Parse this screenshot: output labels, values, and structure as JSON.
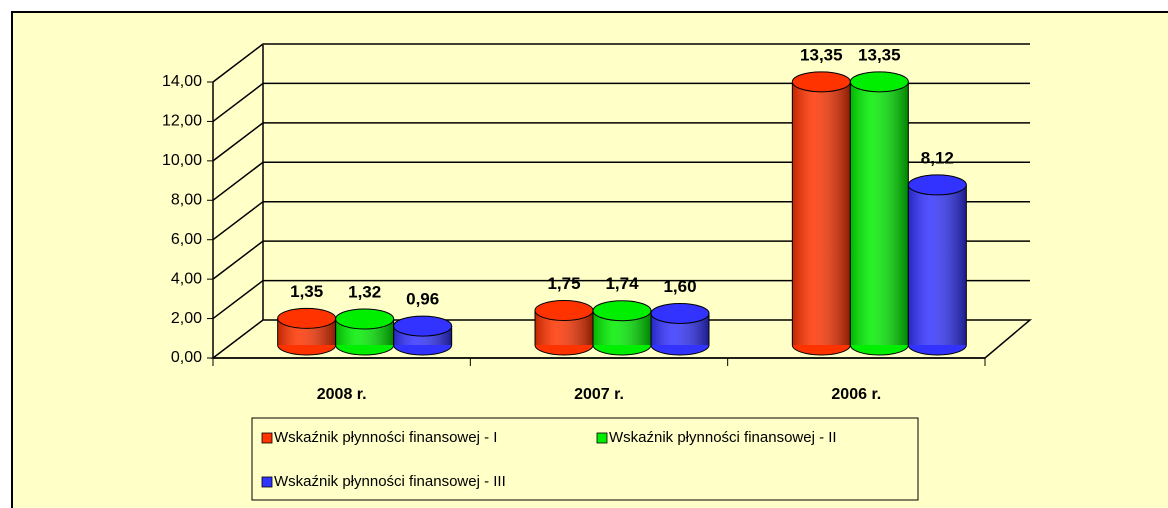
{
  "chart_data": {
    "type": "bar3d",
    "categories": [
      "2008 r.",
      "2007 r.",
      "2006 r."
    ],
    "series": [
      {
        "name": "Wskaźnik płynności  finansowej - I",
        "color": "#ff3300",
        "values": [
          1.35,
          1.75,
          13.35
        ],
        "value_labels": [
          "1,35",
          "1,75",
          "13,35"
        ]
      },
      {
        "name": "Wskaźnik płynności  finansowej - II",
        "color": "#00ee00",
        "values": [
          1.32,
          1.74,
          13.35
        ],
        "value_labels": [
          "1,32",
          "1,74",
          "13,35"
        ]
      },
      {
        "name": "Wskaźnik płynności  finansowej - III",
        "color": "#3333ff",
        "values": [
          0.96,
          1.6,
          8.12
        ],
        "value_labels": [
          "0,96",
          "1,60",
          "8,12"
        ]
      }
    ],
    "ylim": [
      0,
      14
    ],
    "yticks": [
      {
        "value": 0,
        "label": "0,00"
      },
      {
        "value": 2,
        "label": "2,00"
      },
      {
        "value": 4,
        "label": "4,00"
      },
      {
        "value": 6,
        "label": "6,00"
      },
      {
        "value": 8,
        "label": "8,00"
      },
      {
        "value": 10,
        "label": "10,00"
      },
      {
        "value": 12,
        "label": "12,00"
      },
      {
        "value": 14,
        "label": "14,00"
      }
    ],
    "grid": true,
    "legend": "bottom"
  }
}
